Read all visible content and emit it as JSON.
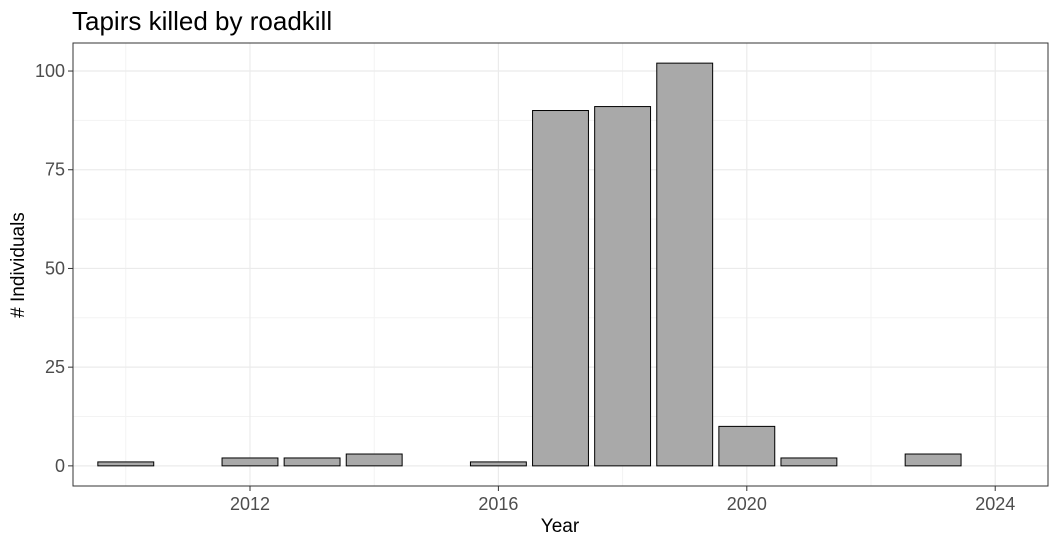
{
  "chart_data": {
    "type": "bar",
    "title": "Tapirs killed by roadkill",
    "xlabel": "Year",
    "ylabel": "# Individuals",
    "x": [
      2010,
      2012,
      2013,
      2014,
      2016,
      2017,
      2018,
      2019,
      2020,
      2021,
      2023
    ],
    "values": [
      1,
      2,
      2,
      3,
      1,
      90,
      91,
      102,
      10,
      2,
      3
    ],
    "xticks": [
      2012,
      2016,
      2020,
      2024
    ],
    "xtick_labels": [
      "2012",
      "2016",
      "2020",
      "2024"
    ],
    "yticks": [
      0,
      25,
      50,
      75,
      100
    ],
    "ytick_labels": [
      "0",
      "25",
      "50",
      "75",
      "100"
    ],
    "xlim": [
      2009.15,
      2024.85
    ],
    "ylim": [
      -5.1,
      107.1
    ],
    "grid": true,
    "legend": "none",
    "colors": {
      "bar_fill": "#a9a9a9",
      "bar_stroke": "#000000",
      "grid_major": "#ebebeb",
      "grid_minor": "#f3f3f3",
      "panel_border": "#333333",
      "tick_text": "#4d4d4d"
    }
  }
}
